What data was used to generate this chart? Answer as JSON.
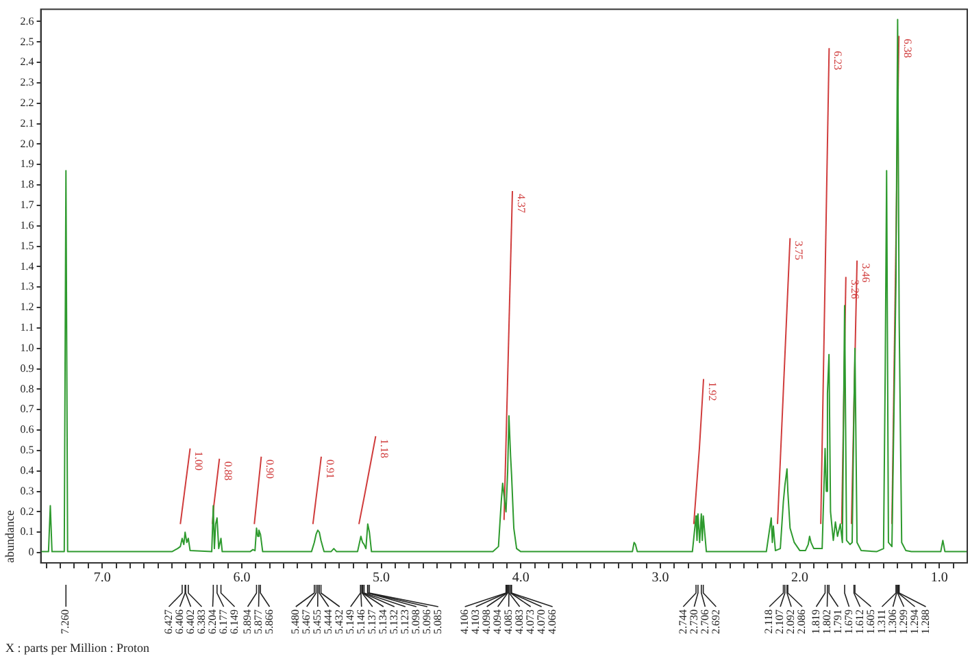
{
  "chart_data": {
    "type": "line",
    "xlabel": "X : parts per Million : Proton",
    "ylabel": "abundance",
    "xlim": [
      7.44,
      0.8
    ],
    "xticks": [
      {
        "value": 7.4,
        "label": null
      },
      {
        "value": 7.3,
        "label": null
      },
      {
        "value": 7.2,
        "label": null
      },
      {
        "value": 7.1,
        "label": null
      },
      {
        "value": 7,
        "label": "7.0"
      },
      {
        "value": 6.9,
        "label": null
      },
      {
        "value": 6.8,
        "label": null
      },
      {
        "value": 6.7,
        "label": null
      },
      {
        "value": 6.6,
        "label": null
      },
      {
        "value": 6.5,
        "label": null
      },
      {
        "value": 6.4,
        "label": null
      },
      {
        "value": 6.3,
        "label": null
      },
      {
        "value": 6.2,
        "label": null
      },
      {
        "value": 6.1,
        "label": null
      },
      {
        "value": 6,
        "label": "6.0"
      },
      {
        "value": 5.9,
        "label": null
      },
      {
        "value": 5.8,
        "label": null
      },
      {
        "value": 5.7,
        "label": null
      },
      {
        "value": 5.6,
        "label": null
      },
      {
        "value": 5.5,
        "label": null
      },
      {
        "value": 5.4,
        "label": null
      },
      {
        "value": 5.3,
        "label": null
      },
      {
        "value": 5.2,
        "label": null
      },
      {
        "value": 5.1,
        "label": null
      },
      {
        "value": 5,
        "label": "5.0"
      },
      {
        "value": 4.9,
        "label": null
      },
      {
        "value": 4.8,
        "label": null
      },
      {
        "value": 4.7,
        "label": null
      },
      {
        "value": 4.6,
        "label": null
      },
      {
        "value": 4.5,
        "label": null
      },
      {
        "value": 4.4,
        "label": null
      },
      {
        "value": 4.3,
        "label": null
      },
      {
        "value": 4.2,
        "label": null
      },
      {
        "value": 4.1,
        "label": null
      },
      {
        "value": 4,
        "label": "4.0"
      },
      {
        "value": 3.9,
        "label": null
      },
      {
        "value": 3.8,
        "label": null
      },
      {
        "value": 3.7,
        "label": null
      },
      {
        "value": 3.6,
        "label": null
      },
      {
        "value": 3.5,
        "label": null
      },
      {
        "value": 3.4,
        "label": null
      },
      {
        "value": 3.3,
        "label": null
      },
      {
        "value": 3.2,
        "label": null
      },
      {
        "value": 3.1,
        "label": null
      },
      {
        "value": 3,
        "label": "3.0"
      },
      {
        "value": 2.9,
        "label": null
      },
      {
        "value": 2.8,
        "label": null
      },
      {
        "value": 2.7,
        "label": null
      },
      {
        "value": 2.6,
        "label": null
      },
      {
        "value": 2.5,
        "label": null
      },
      {
        "value": 2.4,
        "label": null
      },
      {
        "value": 2.3,
        "label": null
      },
      {
        "value": 2.2,
        "label": null
      },
      {
        "value": 2.1,
        "label": null
      },
      {
        "value": 2,
        "label": "2.0"
      },
      {
        "value": 1.9,
        "label": null
      },
      {
        "value": 1.8,
        "label": null
      },
      {
        "value": 1.7,
        "label": null
      },
      {
        "value": 1.6,
        "label": null
      },
      {
        "value": 1.5,
        "label": null
      },
      {
        "value": 1.4,
        "label": null
      },
      {
        "value": 1.3,
        "label": null
      },
      {
        "value": 1.2,
        "label": null
      },
      {
        "value": 1.1,
        "label": null
      },
      {
        "value": 1,
        "label": "1.0"
      },
      {
        "value": 0.9,
        "label": null
      }
    ],
    "ylim": [
      -0.05,
      2.66
    ],
    "yticks": [
      0,
      0.1,
      0.2,
      0.3,
      0.4,
      0.5,
      0.6,
      0.7,
      0.8,
      0.9,
      {
        "value": 1,
        "label": "1.0"
      },
      1.1,
      1.2,
      1.3,
      1.4,
      1.5,
      1.6,
      1.7,
      1.8,
      1.9,
      {
        "value": 2,
        "label": "2.0"
      },
      2.1,
      2.2,
      2.3,
      2.4,
      2.5,
      2.6
    ],
    "series": [
      {
        "color": "#2e9a2e",
        "x": [
          7.44,
          7.385,
          7.372,
          7.36,
          7.272,
          7.26,
          7.248,
          6.5,
          6.46,
          6.44,
          6.427,
          6.415,
          6.406,
          6.394,
          6.383,
          6.37,
          6.215,
          6.204,
          6.196,
          6.187,
          6.177,
          6.165,
          6.149,
          6.14,
          5.94,
          5.92,
          5.905,
          5.894,
          5.885,
          5.877,
          5.866,
          5.85,
          5.5,
          5.48,
          5.467,
          5.455,
          5.444,
          5.432,
          5.41,
          5.36,
          5.34,
          5.32,
          5.17,
          5.146,
          5.134,
          5.123,
          5.11,
          5.097,
          5.085,
          5.07,
          4.2,
          4.16,
          4.14,
          4.13,
          4.12,
          4.106,
          4.094,
          4.085,
          4.073,
          4.066,
          4.05,
          4.03,
          4.0,
          3.2,
          3.188,
          3.178,
          3.165,
          2.77,
          2.744,
          2.737,
          2.73,
          2.718,
          2.706,
          2.699,
          2.692,
          2.67,
          2.24,
          2.205,
          2.197,
          2.19,
          2.175,
          2.14,
          2.118,
          2.107,
          2.092,
          2.086,
          2.07,
          2.04,
          2.0,
          1.96,
          1.94,
          1.93,
          1.92,
          1.9,
          1.84,
          1.819,
          1.81,
          1.802,
          1.791,
          1.78,
          1.76,
          1.745,
          1.73,
          1.71,
          1.695,
          1.679,
          1.665,
          1.64,
          1.625,
          1.612,
          1.605,
          1.59,
          1.56,
          1.45,
          1.4,
          1.388,
          1.378,
          1.365,
          1.34,
          1.311,
          1.299,
          1.288,
          1.27,
          1.24,
          1.2,
          0.99,
          0.975,
          0.96,
          0.8
        ],
        "values": [
          0.005,
          0.005,
          0.23,
          0.005,
          0.005,
          1.87,
          0.005,
          0.005,
          0.02,
          0.03,
          0.07,
          0.04,
          0.1,
          0.05,
          0.07,
          0.01,
          0.005,
          0.23,
          0.02,
          0.14,
          0.17,
          0.02,
          0.07,
          0.005,
          0.005,
          0.015,
          0.01,
          0.12,
          0.08,
          0.11,
          0.09,
          0.005,
          0.005,
          0.05,
          0.09,
          0.11,
          0.1,
          0.06,
          0.005,
          0.005,
          0.02,
          0.005,
          0.005,
          0.08,
          0.05,
          0.04,
          0.02,
          0.14,
          0.1,
          0.005,
          0.005,
          0.03,
          0.25,
          0.34,
          0.28,
          0.2,
          0.4,
          0.67,
          0.47,
          0.38,
          0.12,
          0.02,
          0.005,
          0.005,
          0.05,
          0.04,
          0.005,
          0.005,
          0.18,
          0.06,
          0.19,
          0.05,
          0.19,
          0.06,
          0.18,
          0.005,
          0.005,
          0.17,
          0.05,
          0.13,
          0.01,
          0.02,
          0.25,
          0.33,
          0.41,
          0.3,
          0.12,
          0.05,
          0.01,
          0.01,
          0.04,
          0.08,
          0.05,
          0.02,
          0.02,
          0.51,
          0.3,
          0.78,
          0.97,
          0.2,
          0.06,
          0.15,
          0.08,
          0.14,
          0.05,
          1.21,
          0.06,
          0.04,
          0.05,
          0.71,
          1.0,
          0.05,
          0.01,
          0.005,
          0.02,
          0.89,
          1.87,
          0.05,
          0.03,
          1.33,
          2.61,
          1.14,
          0.05,
          0.01,
          0.005,
          0.005,
          0.06,
          0.005,
          0.005
        ]
      },
      {
        "color": "#d03c3c",
        "x": [
          6.44,
          6.37
        ],
        "values": [
          0.14,
          0.51
        ]
      },
      {
        "color": "#d03c3c",
        "x": [
          6.21,
          6.2,
          6.16
        ],
        "values": [
          0.14,
          0.23,
          0.46
        ]
      },
      {
        "color": "#d03c3c",
        "x": [
          5.91,
          5.86
        ],
        "values": [
          0.14,
          0.47
        ]
      },
      {
        "color": "#d03c3c",
        "x": [
          5.49,
          5.43
        ],
        "values": [
          0.14,
          0.47
        ]
      },
      {
        "color": "#d03c3c",
        "x": [
          5.16,
          5.12,
          5.04
        ],
        "values": [
          0.14,
          0.28,
          0.57
        ]
      },
      {
        "color": "#d03c3c",
        "x": [
          4.12,
          4.06
        ],
        "values": [
          0.16,
          1.77
        ]
      },
      {
        "color": "#d03c3c",
        "x": [
          2.76,
          2.72,
          2.69
        ],
        "values": [
          0.14,
          0.51,
          0.85
        ]
      },
      {
        "color": "#d03c3c",
        "x": [
          2.16,
          2.07
        ],
        "values": [
          0.14,
          1.54
        ]
      },
      {
        "color": "#d03c3c",
        "x": [
          1.85,
          1.79
        ],
        "values": [
          0.14,
          2.47
        ]
      },
      {
        "color": "#d03c3c",
        "x": [
          1.7,
          1.67
        ],
        "values": [
          0.14,
          1.35
        ]
      },
      {
        "color": "#d03c3c",
        "x": [
          1.63,
          1.59
        ],
        "values": [
          0.14,
          1.43
        ]
      },
      {
        "color": "#d03c3c",
        "x": [
          1.34,
          1.29
        ],
        "values": [
          0.14,
          2.53
        ]
      }
    ],
    "annotations": [
      {
        "text": "1.00",
        "x": 6.37,
        "y": 0.51
      },
      {
        "text": "0.88",
        "x": 6.16,
        "y": 0.46
      },
      {
        "text": "0.90",
        "x": 5.86,
        "y": 0.47
      },
      {
        "text": "0.91",
        "x": 5.43,
        "y": 0.47
      },
      {
        "text": "1.18",
        "x": 5.04,
        "y": 0.57
      },
      {
        "text": "4.37",
        "x": 4.06,
        "y": 1.77
      },
      {
        "text": "1.92",
        "x": 2.69,
        "y": 0.85
      },
      {
        "text": "3.75",
        "x": 2.07,
        "y": 1.54
      },
      {
        "text": "6.23",
        "x": 1.79,
        "y": 2.47
      },
      {
        "text": "3.26",
        "x": 1.67,
        "y": 1.35
      },
      {
        "text": "3.46",
        "x": 1.59,
        "y": 1.43
      },
      {
        "text": "6.38",
        "x": 1.29,
        "y": 2.53
      },
      {
        "text": "7.260",
        "x": 7.26
      },
      {
        "text": "6.427",
        "x": 6.427
      },
      {
        "text": "6.406",
        "x": 6.406
      },
      {
        "text": "6.402",
        "x": 6.402
      },
      {
        "text": "6.383",
        "x": 6.383
      },
      {
        "text": "6.204",
        "x": 6.204
      },
      {
        "text": "6.177",
        "x": 6.177
      },
      {
        "text": "6.149",
        "x": 6.149
      },
      {
        "text": "5.894",
        "x": 5.894
      },
      {
        "text": "5.877",
        "x": 5.877
      },
      {
        "text": "5.866",
        "x": 5.866
      },
      {
        "text": "5.480",
        "x": 5.48
      },
      {
        "text": "5.467",
        "x": 5.467
      },
      {
        "text": "5.455",
        "x": 5.455
      },
      {
        "text": "5.444",
        "x": 5.444
      },
      {
        "text": "5.432",
        "x": 5.432
      },
      {
        "text": "5.149",
        "x": 5.149
      },
      {
        "text": "5.146",
        "x": 5.146
      },
      {
        "text": "5.137",
        "x": 5.137
      },
      {
        "text": "5.134",
        "x": 5.134
      },
      {
        "text": "5.132",
        "x": 5.132
      },
      {
        "text": "5.123",
        "x": 5.123
      },
      {
        "text": "5.098",
        "x": 5.098
      },
      {
        "text": "5.096",
        "x": 5.096
      },
      {
        "text": "5.085",
        "x": 5.085
      },
      {
        "text": "4.106",
        "x": 4.106
      },
      {
        "text": "4.103",
        "x": 4.103
      },
      {
        "text": "4.098",
        "x": 4.098
      },
      {
        "text": "4.094",
        "x": 4.094
      },
      {
        "text": "4.085",
        "x": 4.085
      },
      {
        "text": "4.083",
        "x": 4.083
      },
      {
        "text": "4.073",
        "x": 4.073
      },
      {
        "text": "4.070",
        "x": 4.07
      },
      {
        "text": "4.066",
        "x": 4.066
      },
      {
        "text": "2.744",
        "x": 2.744
      },
      {
        "text": "2.730",
        "x": 2.73
      },
      {
        "text": "2.706",
        "x": 2.706
      },
      {
        "text": "2.692",
        "x": 2.692
      },
      {
        "text": "2.118",
        "x": 2.118
      },
      {
        "text": "2.107",
        "x": 2.107
      },
      {
        "text": "2.092",
        "x": 2.092
      },
      {
        "text": "2.086",
        "x": 2.086
      },
      {
        "text": "1.819",
        "x": 1.819
      },
      {
        "text": "1.802",
        "x": 1.802
      },
      {
        "text": "1.791",
        "x": 1.791
      },
      {
        "text": "1.679",
        "x": 1.679
      },
      {
        "text": "1.612",
        "x": 1.612
      },
      {
        "text": "1.605",
        "x": 1.605
      },
      {
        "text": "1.311",
        "x": 1.311
      },
      {
        "text": "1.306",
        "x": 1.306
      },
      {
        "text": "1.299",
        "x": 1.299
      },
      {
        "text": "1.294",
        "x": 1.294
      },
      {
        "text": "1.288",
        "x": 1.288
      }
    ]
  }
}
